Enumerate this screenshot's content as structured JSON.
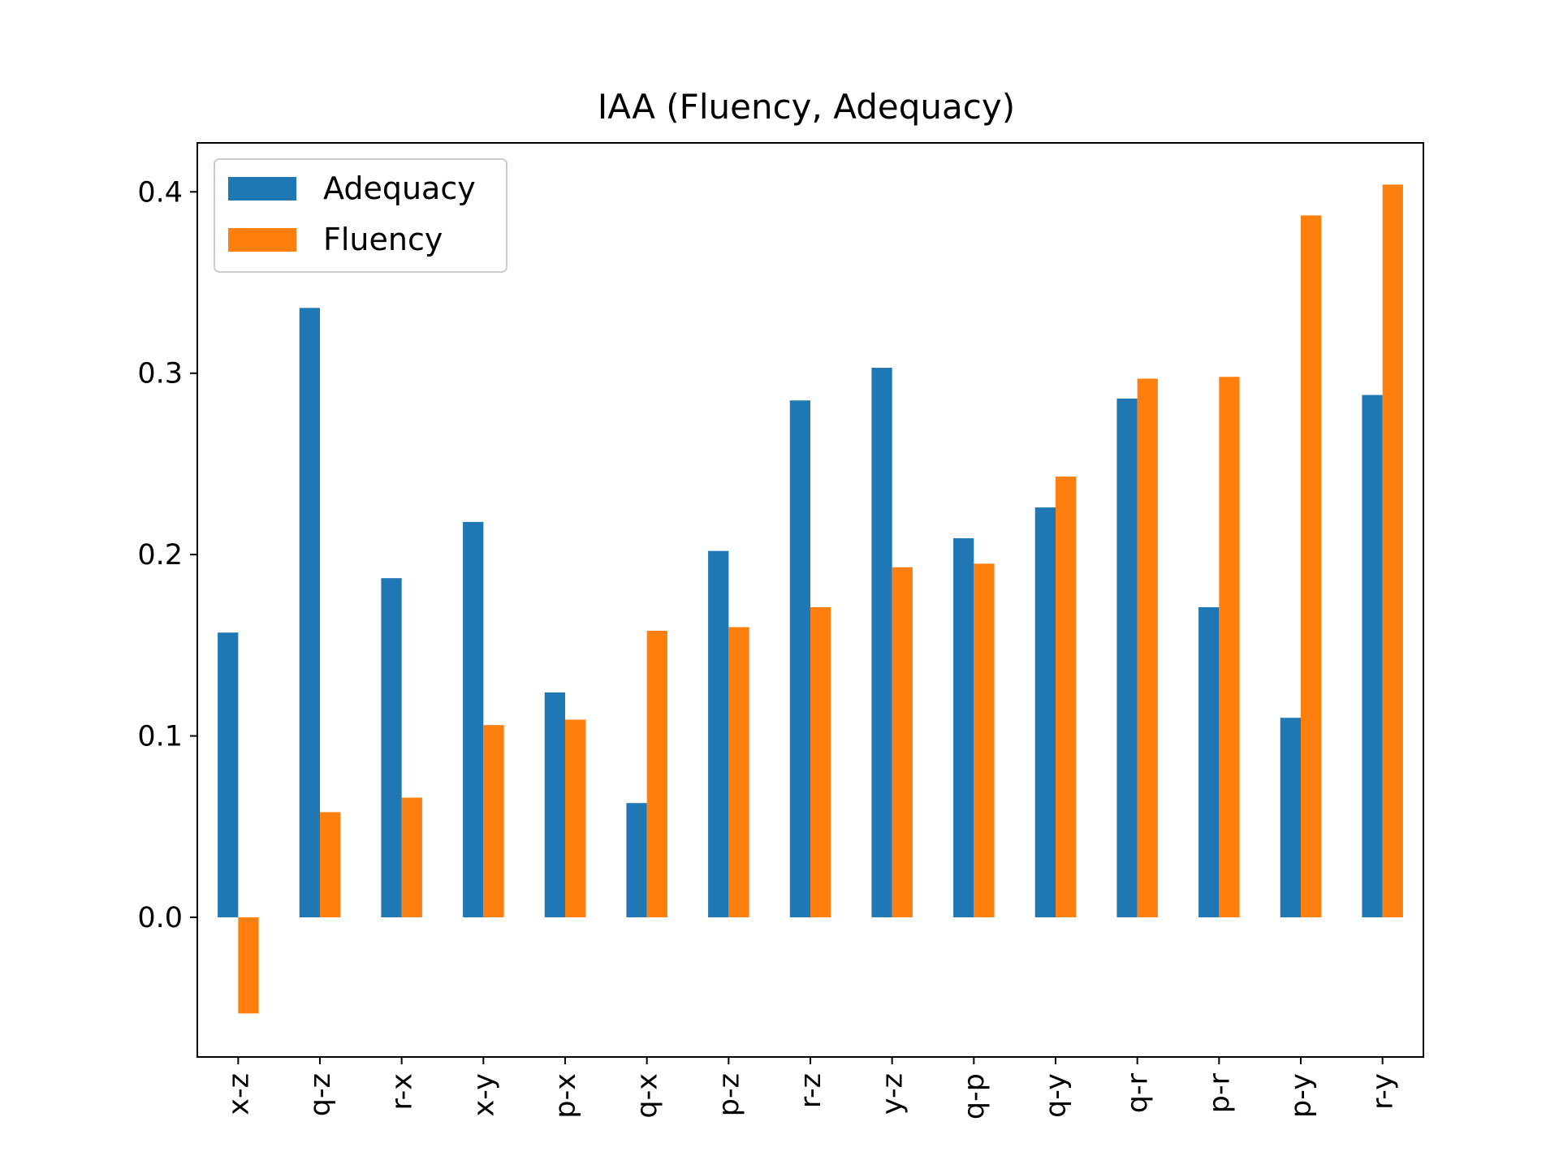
{
  "chart_data": {
    "type": "bar",
    "title": "IAA (Fluency, Adequacy)",
    "xlabel": "",
    "ylabel": "",
    "categories": [
      "x-z",
      "q-z",
      "r-x",
      "x-y",
      "p-x",
      "q-x",
      "p-z",
      "r-z",
      "y-z",
      "q-p",
      "q-y",
      "q-r",
      "p-r",
      "p-y",
      "r-y"
    ],
    "series": [
      {
        "name": "Adequacy",
        "color": "#1f77b4",
        "values": [
          0.157,
          0.336,
          0.187,
          0.218,
          0.124,
          0.063,
          0.202,
          0.285,
          0.303,
          0.209,
          0.226,
          0.286,
          0.171,
          0.11,
          0.288
        ]
      },
      {
        "name": "Fluency",
        "color": "#ff7f0e",
        "values": [
          -0.053,
          0.058,
          0.066,
          0.106,
          0.109,
          0.158,
          0.16,
          0.171,
          0.193,
          0.195,
          0.243,
          0.297,
          0.298,
          0.387,
          0.404
        ]
      }
    ],
    "ylim": [
      -0.077,
      0.427
    ],
    "yticks": [
      0.0,
      0.1,
      0.2,
      0.3,
      0.4
    ],
    "ytick_labels": [
      "0.0",
      "0.1",
      "0.2",
      "0.3",
      "0.4"
    ],
    "grid": false,
    "legend_position": "top-left"
  }
}
